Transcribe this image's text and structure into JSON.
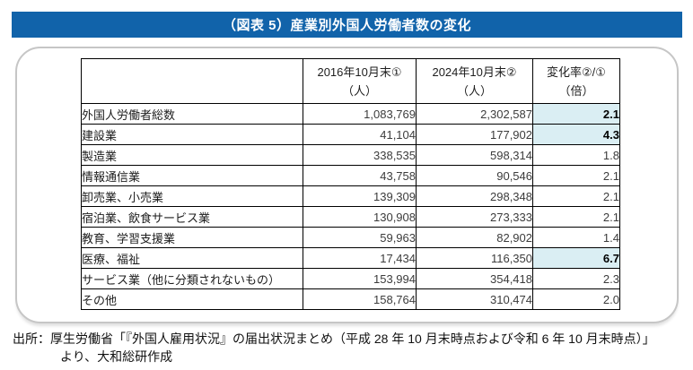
{
  "title_bar": {
    "label": "（図表 5）産業別外国人労働者数の変化"
  },
  "colors": {
    "title-bg": "#1163aa",
    "title-fg": "#ffffff",
    "highlight": "#daeef3"
  },
  "table": {
    "columns": [
      {
        "line1": "",
        "line2": ""
      },
      {
        "line1": "2016年10月末①",
        "line2": "（人）"
      },
      {
        "line1": "2024年10月末②",
        "line2": "（人）"
      },
      {
        "line1": "変化率②/①",
        "line2": "（倍）"
      }
    ],
    "rows": [
      {
        "label": "外国人労働者総数",
        "v2016": "1,083,769",
        "v2024": "2,302,587",
        "ratio": "2.1",
        "highlight": true
      },
      {
        "label": "建設業",
        "v2016": "41,104",
        "v2024": "177,902",
        "ratio": "4.3",
        "highlight": true
      },
      {
        "label": "製造業",
        "v2016": "338,535",
        "v2024": "598,314",
        "ratio": "1.8",
        "highlight": false
      },
      {
        "label": "情報通信業",
        "v2016": "43,758",
        "v2024": "90,546",
        "ratio": "2.1",
        "highlight": false
      },
      {
        "label": "卸売業、小売業",
        "v2016": "139,309",
        "v2024": "298,348",
        "ratio": "2.1",
        "highlight": false
      },
      {
        "label": "宿泊業、飲食サービス業",
        "v2016": "130,908",
        "v2024": "273,333",
        "ratio": "2.1",
        "highlight": false
      },
      {
        "label": "教育、学習支援業",
        "v2016": "59,963",
        "v2024": "82,902",
        "ratio": "1.4",
        "highlight": false
      },
      {
        "label": "医療、福祉",
        "v2016": "17,434",
        "v2024": "116,350",
        "ratio": "6.7",
        "highlight": true
      },
      {
        "label": "サービス業（他に分類されないもの）",
        "v2016": "153,994",
        "v2024": "354,418",
        "ratio": "2.3",
        "highlight": false
      },
      {
        "label": "その他",
        "v2016": "158,764",
        "v2024": "310,474",
        "ratio": "2.0",
        "highlight": false
      }
    ]
  },
  "source": {
    "line1": "出所：厚生労働省「『外国人雇用状況』の届出状況まとめ（平成 28 年 10 月末時点および令和 6 年 10 月末時点）」",
    "line2": "より、大和総研作成"
  }
}
